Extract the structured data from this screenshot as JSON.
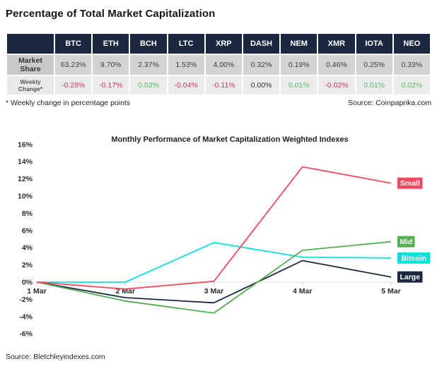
{
  "page_title": "Percentage of Total Market Capitalization",
  "table": {
    "columns": [
      "BTC",
      "ETH",
      "BCH",
      "LTC",
      "XRP",
      "DASH",
      "NEM",
      "XMR",
      "IOTA",
      "NEO"
    ],
    "rows": [
      {
        "label": "Market Share",
        "values": [
          "63.23%",
          "9.70%",
          "2.37%",
          "1.53%",
          "4.00%",
          "0.32%",
          "0.19%",
          "0.46%",
          "0.25%",
          "0.33%"
        ]
      },
      {
        "label": "Weekly Change*",
        "values": [
          "-0.29%",
          "-0.17%",
          "0.03%",
          "-0.04%",
          "-0.11%",
          "0.00%",
          "0.01%",
          "-0.02%",
          "0.01%",
          "0.02%"
        ]
      }
    ]
  },
  "footnote": "* Weekly change in percentage points",
  "table_source": "Source: Coinpaprika.com",
  "chart_source": "Source: Bletchleyindexes.com",
  "colors": {
    "header_bg": "#1b2840",
    "row1_bg": "#d3d3d3",
    "row1_label_bg": "#c9c9c9",
    "row2_bg": "#ebebeb",
    "row2_label_bg": "#e9e9e9",
    "negative_text": "#cf3657",
    "positive_text": "#56bd68"
  },
  "chart_data": {
    "type": "line",
    "title": "Monthly Performance of Market Capitalization Weighted Indexes",
    "categories": [
      "1 Mar",
      "2 Mar",
      "3 Mar",
      "4 Mar",
      "5 Mar"
    ],
    "series": [
      {
        "name": "Small",
        "color": "#f5485f",
        "values": [
          0,
          -0.8,
          0.1,
          13.4,
          11.5
        ]
      },
      {
        "name": "Mid",
        "color": "#53ad53",
        "values": [
          0,
          -2.2,
          -3.6,
          3.7,
          4.7
        ]
      },
      {
        "name": "Bitcoin",
        "color": "#0bdfd6",
        "values": [
          0,
          0,
          4.6,
          2.9,
          2.8
        ]
      },
      {
        "name": "Large",
        "color": "#1b2940",
        "values": [
          0,
          -1.8,
          -2.4,
          2.5,
          0.6
        ]
      }
    ],
    "y_ticks": [
      "16%",
      "14%",
      "12%",
      "10%",
      "8%",
      "6%",
      "4%",
      "2%",
      "0%",
      "-2%",
      "-4%",
      "-6%"
    ],
    "ylim": [
      -6,
      16
    ],
    "xlabel": "",
    "ylabel": "",
    "grid": false,
    "legend_position": "right"
  }
}
